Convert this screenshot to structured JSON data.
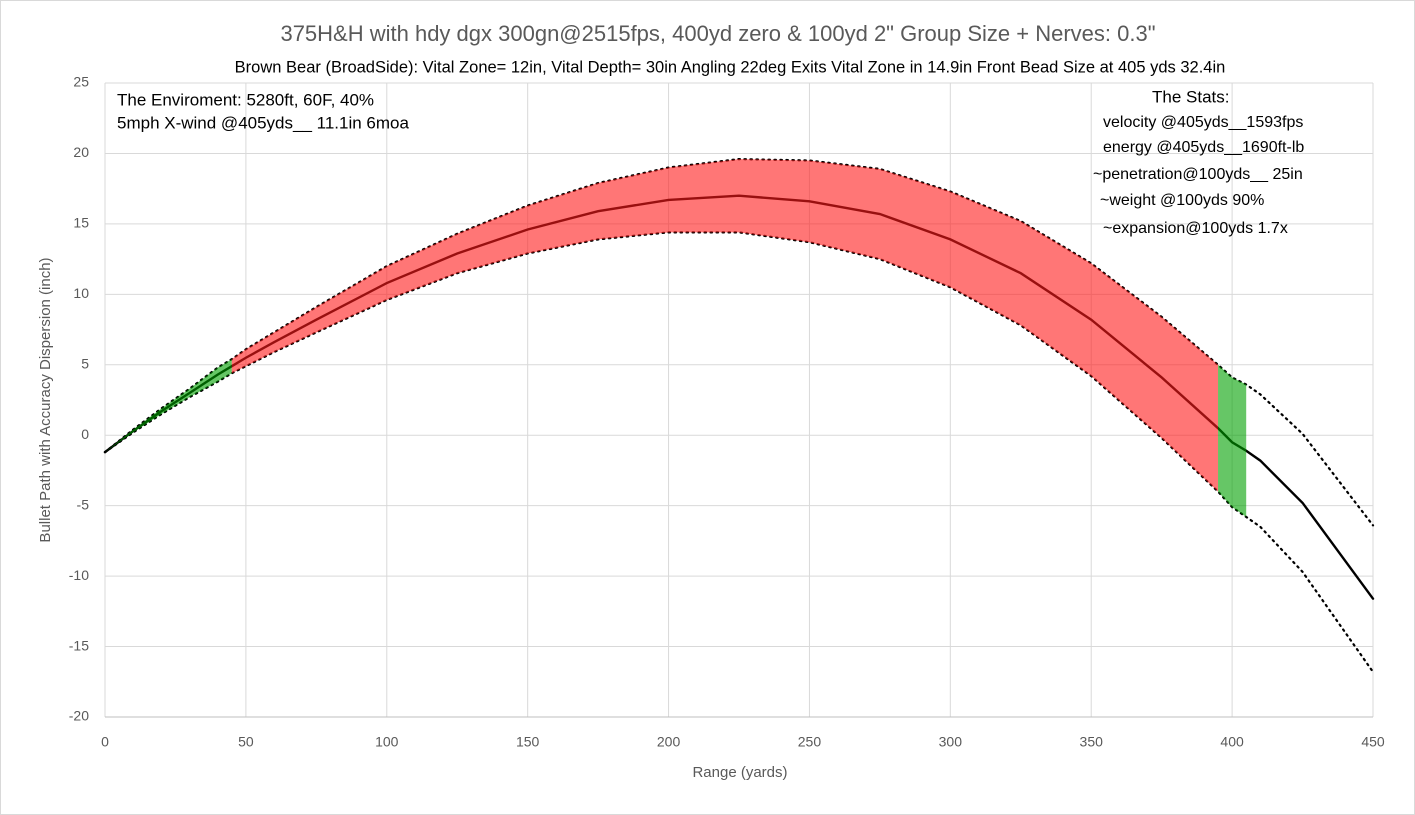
{
  "chart_data": {
    "type": "line",
    "title": "375H&H with hdy dgx 300gn@2515fps, 400yd zero & 100yd  2\" Group Size + Nerves: 0.3\"",
    "subtitle": "Brown Bear (BroadSide): Vital Zone= 12in, Vital Depth= 30in   Angling 22deg Exits Vital Zone in 14.9in    Front Bead Size at 405 yds 32.4in",
    "x_label": "Range (yards)",
    "y_label": "Bullet Path with Accuracy Dispersion (inch)",
    "annotations": [
      "The Enviroment: 5280ft, 60F,  40%",
      "5mph X-wind @405yds__ 11.1in 6moa",
      "The Stats:",
      "velocity @405yds__1593fps",
      "energy @405yds__1690ft-lb",
      "~penetration@100yds__ 25in",
      "~weight @100yds 90%",
      "~expansion@100yds 1.7x"
    ],
    "xlim": [
      0,
      450
    ],
    "ylim": [
      -20,
      25
    ],
    "xticks": [
      0,
      50,
      100,
      150,
      200,
      250,
      300,
      350,
      400,
      450
    ],
    "yticks": [
      -20,
      -15,
      -10,
      -5,
      0,
      5,
      10,
      15,
      20,
      25
    ],
    "grid": true,
    "x": [
      0,
      10,
      20,
      30,
      40,
      45,
      50,
      60,
      75,
      100,
      125,
      150,
      175,
      200,
      225,
      250,
      275,
      300,
      325,
      350,
      375,
      395,
      400,
      405,
      410,
      425,
      450
    ],
    "series": [
      {
        "color": "#000000",
        "style": "solid",
        "values": [
          -1.2,
          0.3,
          1.7,
          3.0,
          4.3,
          4.9,
          5.5,
          6.6,
          8.2,
          10.8,
          12.9,
          14.6,
          15.9,
          16.7,
          17.0,
          16.6,
          15.7,
          13.9,
          11.5,
          8.2,
          4.1,
          0.5,
          -0.5,
          -1.1,
          -1.8,
          -4.8,
          -11.6
        ]
      },
      {
        "color": "#000000",
        "style": "dotted",
        "values": [
          -1.2,
          0.4,
          1.9,
          3.3,
          4.8,
          5.4,
          6.1,
          7.3,
          9.1,
          12.0,
          14.3,
          16.3,
          17.9,
          19.0,
          19.6,
          19.5,
          18.9,
          17.3,
          15.2,
          12.2,
          8.4,
          5.0,
          4.1,
          3.6,
          2.9,
          0.1,
          -6.4
        ]
      },
      {
        "color": "#000000",
        "style": "dotted",
        "values": [
          -1.2,
          0.2,
          1.5,
          2.7,
          3.8,
          4.4,
          4.9,
          5.9,
          7.3,
          9.6,
          11.5,
          12.9,
          13.9,
          14.4,
          14.4,
          13.7,
          12.5,
          10.5,
          7.8,
          4.2,
          -0.2,
          -4.0,
          -5.1,
          -5.8,
          -6.5,
          -9.7,
          -16.8
        ]
      }
    ],
    "bands": [
      {
        "from": 0,
        "to": 45,
        "color": "#00a000"
      },
      {
        "from": 45,
        "to": 395,
        "color": "#ff1a1a"
      },
      {
        "from": 395,
        "to": 405,
        "color": "#00a000"
      }
    ]
  }
}
